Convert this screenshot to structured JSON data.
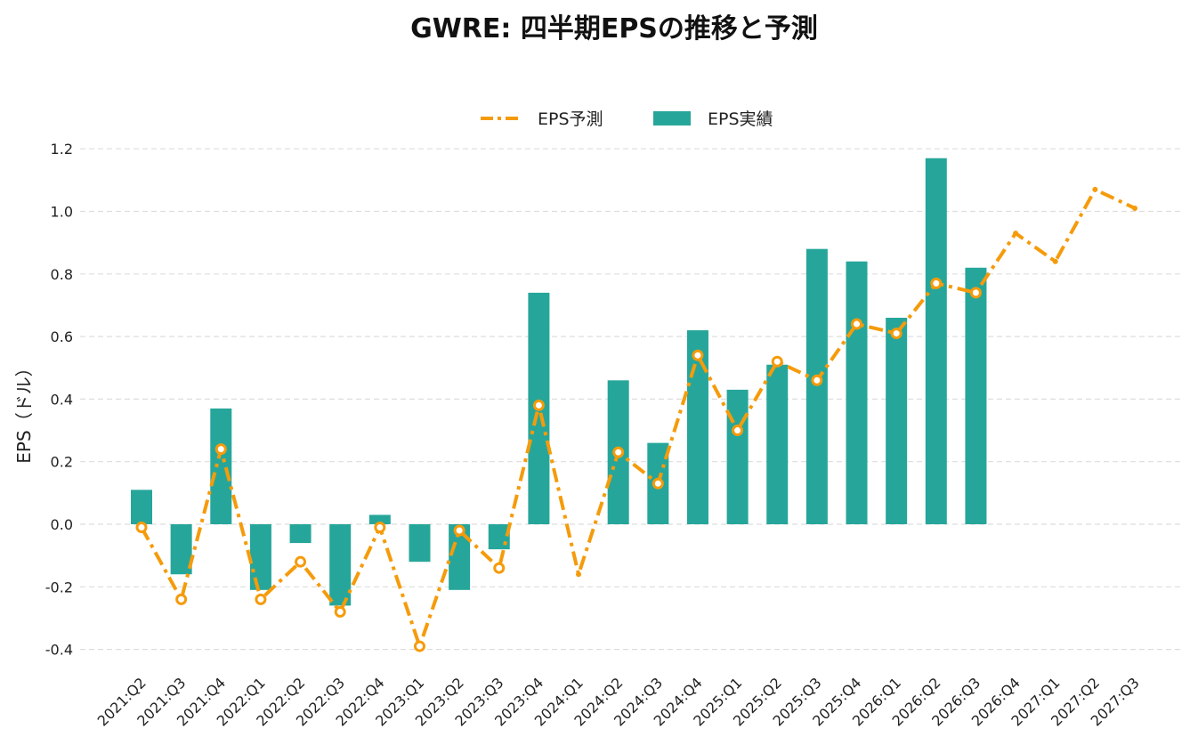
{
  "colors": {
    "bar": "#26a69a",
    "line": "#f59b0b",
    "grid": "#dddddd",
    "marker_fill": "#ffffff"
  },
  "chart_data": {
    "type": "bar+line",
    "title": "GWRE: 四半期EPSの推移と予測",
    "ylabel": "EPS（ドル）",
    "xlabel": "",
    "ylim": [
      -0.45,
      1.25
    ],
    "yticks": [
      -0.4,
      -0.2,
      0.0,
      0.2,
      0.4,
      0.6,
      0.8,
      1.0,
      1.2
    ],
    "ytick_labels": [
      "-0.4",
      "-0.2",
      "0.0",
      "0.2",
      "0.4",
      "0.6",
      "0.8",
      "1.0",
      "1.2"
    ],
    "grid": true,
    "legend": "top-center",
    "categories": [
      "2021:Q2",
      "2021:Q3",
      "2021:Q4",
      "2022:Q1",
      "2022:Q2",
      "2022:Q3",
      "2022:Q4",
      "2023:Q1",
      "2023:Q2",
      "2023:Q3",
      "2023:Q4",
      "2024:Q1",
      "2024:Q2",
      "2024:Q3",
      "2024:Q4",
      "2025:Q1",
      "2025:Q2",
      "2025:Q3",
      "2025:Q4",
      "2026:Q1",
      "2026:Q2",
      "2026:Q3",
      "2026:Q4",
      "2027:Q1",
      "2027:Q2",
      "2027:Q3"
    ],
    "series": [
      {
        "name": "EPS予測",
        "type": "line",
        "values": [
          -0.01,
          -0.24,
          0.24,
          -0.24,
          -0.12,
          -0.28,
          -0.01,
          -0.39,
          -0.02,
          -0.14,
          0.38,
          -0.16,
          0.23,
          0.13,
          0.54,
          0.3,
          0.52,
          0.46,
          0.64,
          0.61,
          0.77,
          0.74,
          0.93,
          0.84,
          1.07,
          1.01
        ]
      },
      {
        "name": "EPS実績",
        "type": "bar",
        "values": [
          0.11,
          -0.16,
          0.37,
          -0.21,
          -0.06,
          -0.26,
          0.03,
          -0.12,
          -0.21,
          -0.08,
          0.74,
          null,
          0.46,
          0.26,
          0.62,
          0.43,
          0.51,
          0.88,
          0.84,
          0.66,
          1.17,
          0.82,
          null,
          null,
          null,
          null
        ]
      }
    ]
  }
}
